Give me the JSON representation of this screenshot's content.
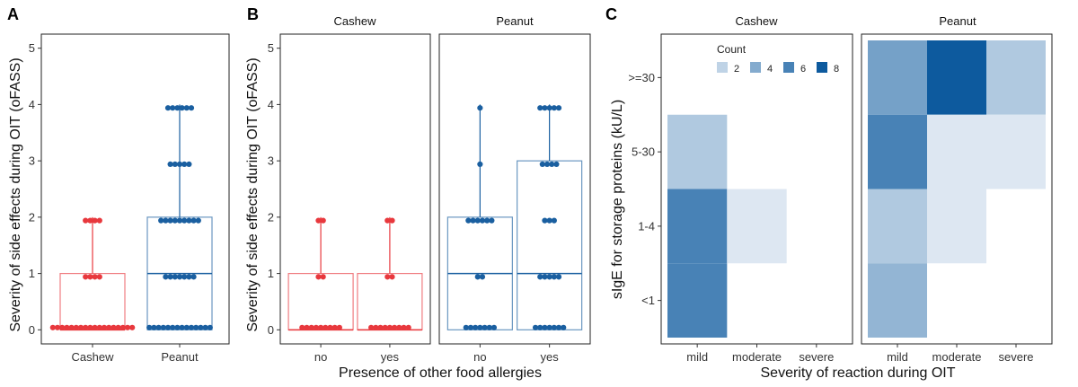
{
  "colors": {
    "cashew": "#e8383d",
    "peanut": "#1a5fa0",
    "heat_low": "#dde7f2",
    "heat_high": "#0d5a9e"
  },
  "chart_data": [
    {
      "panel": "A",
      "type": "boxplot",
      "ylabel": "Severity of side effects during OIT (oFASS)",
      "xlabel": "",
      "ylim": [
        0,
        5
      ],
      "yticks": [
        "0",
        "1",
        "2",
        "3",
        "4",
        "5"
      ],
      "categories": [
        "Cashew",
        "Peanut"
      ],
      "groups": [
        {
          "name": "Cashew",
          "color_key": "cashew",
          "q1": 0,
          "median": 0,
          "q3": 1,
          "whisker_low": 0,
          "whisker_high": 2,
          "points": [
            {
              "y": 0,
              "n": 18
            },
            {
              "y": 1,
              "n": 4
            },
            {
              "y": 2,
              "n": 4
            }
          ]
        },
        {
          "name": "Peanut",
          "color_key": "peanut",
          "q1": 0,
          "median": 1,
          "q3": 2,
          "whisker_low": 0,
          "whisker_high": 4,
          "points": [
            {
              "y": 0,
              "n": 14
            },
            {
              "y": 1,
              "n": 7
            },
            {
              "y": 2,
              "n": 9
            },
            {
              "y": 3,
              "n": 5
            },
            {
              "y": 4,
              "n": 6
            }
          ]
        }
      ]
    },
    {
      "panel": "B",
      "type": "boxplot",
      "ylabel": "Severity of side effects during OIT (oFASS)",
      "xlabel": "Presence of other food allergies",
      "ylim": [
        0,
        5
      ],
      "yticks": [
        "0",
        "1",
        "2",
        "3",
        "4",
        "5"
      ],
      "facets": [
        {
          "title": "Cashew",
          "color_key": "cashew",
          "groups": [
            {
              "name": "no",
              "q1": 0,
              "median": 0,
              "q3": 1,
              "whisker_low": 0,
              "whisker_high": 2,
              "points": [
                {
                  "y": 0,
                  "n": 9
                },
                {
                  "y": 1,
                  "n": 2
                },
                {
                  "y": 2,
                  "n": 2
                }
              ]
            },
            {
              "name": "yes",
              "q1": 0,
              "median": 0,
              "q3": 1,
              "whisker_low": 0,
              "whisker_high": 2,
              "points": [
                {
                  "y": 0,
                  "n": 9
                },
                {
                  "y": 1,
                  "n": 2
                },
                {
                  "y": 2,
                  "n": 2
                }
              ]
            }
          ]
        },
        {
          "title": "Peanut",
          "color_key": "peanut",
          "groups": [
            {
              "name": "no",
              "q1": 0,
              "median": 1,
              "q3": 2,
              "whisker_low": 0,
              "whisker_high": 4,
              "points": [
                {
                  "y": 0,
                  "n": 7
                },
                {
                  "y": 1,
                  "n": 2
                },
                {
                  "y": 2,
                  "n": 6
                },
                {
                  "y": 3,
                  "n": 1
                },
                {
                  "y": 4,
                  "n": 1
                }
              ]
            },
            {
              "name": "yes",
              "q1": 0,
              "median": 1,
              "q3": 3,
              "whisker_low": 0,
              "whisker_high": 4,
              "points": [
                {
                  "y": 0,
                  "n": 7
                },
                {
                  "y": 1,
                  "n": 5
                },
                {
                  "y": 2,
                  "n": 3
                },
                {
                  "y": 3,
                  "n": 4
                },
                {
                  "y": 4,
                  "n": 5
                }
              ]
            }
          ]
        }
      ]
    },
    {
      "panel": "C",
      "type": "heatmap",
      "ylabel": "sIgE for storage proteins (kU/L)",
      "xlabel": "Severity of reaction during OIT",
      "x_categories": [
        "mild",
        "moderate",
        "severe"
      ],
      "y_categories": [
        "<1",
        "1-4",
        "5-30",
        ">=30"
      ],
      "legend": {
        "title": "Count",
        "values": [
          "2",
          "4",
          "6",
          "8"
        ],
        "position": "top-inside"
      },
      "count_range": [
        1,
        8
      ],
      "facets": [
        {
          "title": "Cashew",
          "cells": [
            {
              "x": "mild",
              "y": "<1",
              "count": 6
            },
            {
              "x": "mild",
              "y": "1-4",
              "count": 6
            },
            {
              "x": "mild",
              "y": "5-30",
              "count": 2.5
            },
            {
              "x": "moderate",
              "y": "1-4",
              "count": 1
            }
          ]
        },
        {
          "title": "Peanut",
          "cells": [
            {
              "x": "mild",
              "y": ">=30",
              "count": 4.5
            },
            {
              "x": "moderate",
              "y": ">=30",
              "count": 8
            },
            {
              "x": "severe",
              "y": ">=30",
              "count": 2.5
            },
            {
              "x": "mild",
              "y": "5-30",
              "count": 6
            },
            {
              "x": "moderate",
              "y": "5-30",
              "count": 1
            },
            {
              "x": "severe",
              "y": "5-30",
              "count": 1
            },
            {
              "x": "mild",
              "y": "1-4",
              "count": 2.5
            },
            {
              "x": "moderate",
              "y": "1-4",
              "count": 1
            },
            {
              "x": "mild",
              "y": "<1",
              "count": 3.5
            }
          ]
        }
      ]
    }
  ],
  "panel_labels": [
    "A",
    "B",
    "C"
  ]
}
